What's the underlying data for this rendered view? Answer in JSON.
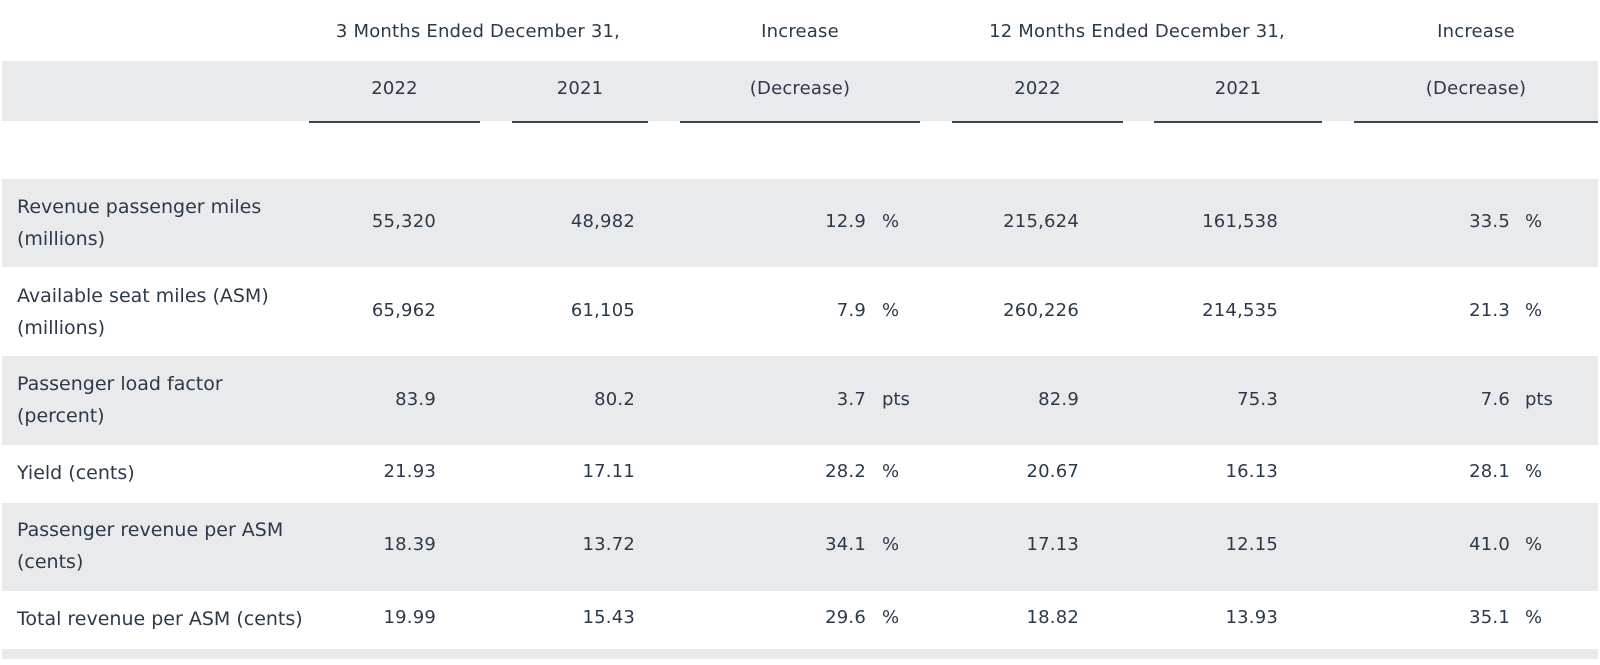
{
  "header": {
    "group_3m": "3 Months Ended December 31,",
    "group_12m": "12 Months Ended December 31,",
    "increase_label": "Increase",
    "decrease_label": "(Decrease)",
    "year_a": "2022",
    "year_b": "2021"
  },
  "rows": [
    {
      "label": "Revenue passenger miles (millions)",
      "q22": "55,320",
      "q21": "48,982",
      "q_chg": "12.9",
      "q_unit": "%",
      "y22": "215,624",
      "y21": "161,538",
      "y_chg": "33.5",
      "y_unit": "%"
    },
    {
      "label": "Available seat miles (ASM) (millions)",
      "q22": "65,962",
      "q21": "61,105",
      "q_chg": "7.9",
      "q_unit": "%",
      "y22": "260,226",
      "y21": "214,535",
      "y_chg": "21.3",
      "y_unit": "%"
    },
    {
      "label": "Passenger load factor (percent)",
      "q22": "83.9",
      "q21": "80.2",
      "q_chg": "3.7",
      "q_unit": "pts",
      "y22": "82.9",
      "y21": "75.3",
      "y_chg": "7.6",
      "y_unit": "pts"
    },
    {
      "label": "Yield (cents)",
      "q22": "21.93",
      "q21": "17.11",
      "q_chg": "28.2",
      "q_unit": "%",
      "y22": "20.67",
      "y21": "16.13",
      "y_chg": "28.1",
      "y_unit": "%"
    },
    {
      "label": "Passenger revenue per ASM (cents)",
      "q22": "18.39",
      "q21": "13.72",
      "q_chg": "34.1",
      "q_unit": "%",
      "y22": "17.13",
      "y21": "12.15",
      "y_chg": "41.0",
      "y_unit": "%"
    },
    {
      "label": "Total revenue per ASM (cents)",
      "q22": "19.99",
      "q21": "15.43",
      "q_chg": "29.6",
      "q_unit": "%",
      "y22": "18.82",
      "y21": "13.93",
      "y_chg": "35.1",
      "y_unit": "%"
    }
  ]
}
